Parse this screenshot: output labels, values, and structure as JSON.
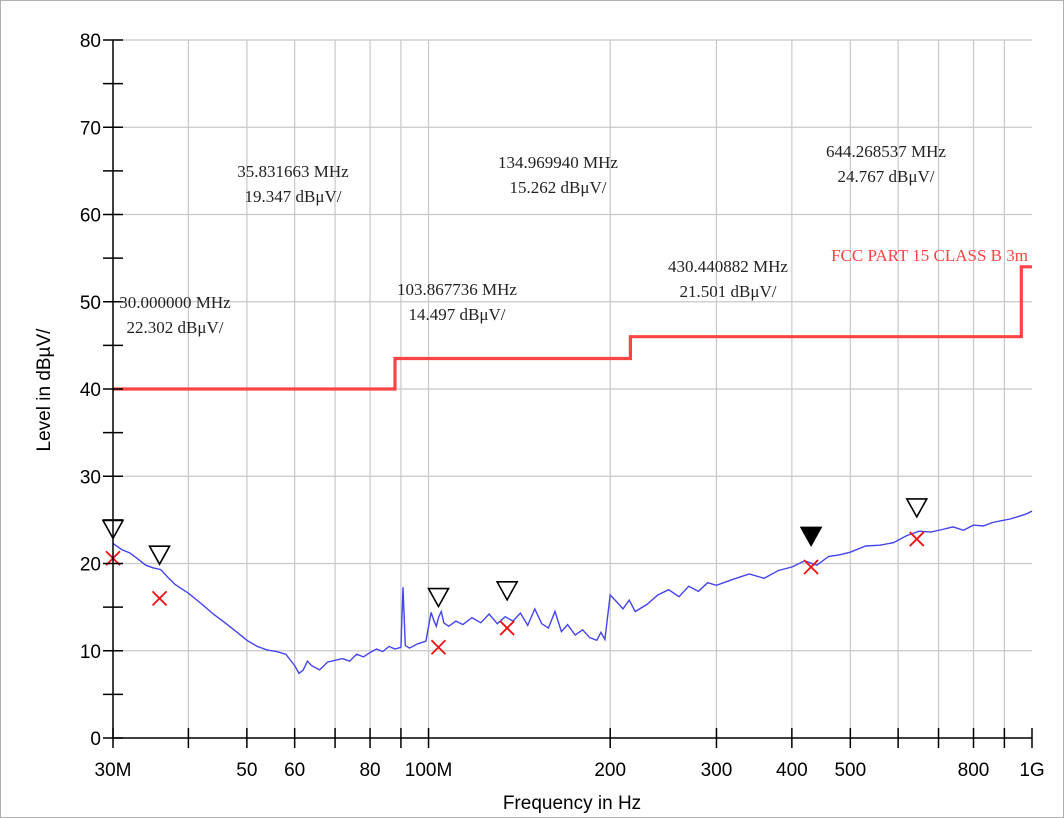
{
  "chart_data": {
    "type": "line",
    "xlabel": "Frequency in Hz",
    "ylabel": "Level in dBµV/",
    "x_scale": "log",
    "xlim": [
      30000000,
      1000000000
    ],
    "ylim": [
      0,
      80
    ],
    "grid": true,
    "x_tick_labels": [
      {
        "value": 30000000,
        "label": "30M"
      },
      {
        "value": 50000000,
        "label": "50"
      },
      {
        "value": 60000000,
        "label": "60"
      },
      {
        "value": 80000000,
        "label": "80"
      },
      {
        "value": 100000000,
        "label": "100M"
      },
      {
        "value": 200000000,
        "label": "200"
      },
      {
        "value": 300000000,
        "label": "300"
      },
      {
        "value": 400000000,
        "label": "400"
      },
      {
        "value": 500000000,
        "label": "500"
      },
      {
        "value": 800000000,
        "label": "800"
      },
      {
        "value": 1000000000,
        "label": "1G"
      }
    ],
    "y_tick_labels": [
      {
        "value": 0,
        "label": "0"
      },
      {
        "value": 10,
        "label": "10"
      },
      {
        "value": 20,
        "label": "20"
      },
      {
        "value": 30,
        "label": "30"
      },
      {
        "value": 40,
        "label": "40"
      },
      {
        "value": 50,
        "label": "50"
      },
      {
        "value": 60,
        "label": "60"
      },
      {
        "value": 70,
        "label": "70"
      },
      {
        "value": 80,
        "label": "80"
      }
    ],
    "limit_line": {
      "name": "FCC PART 15 CLASS B  3m",
      "color": "#ff4444",
      "x": [
        30000000,
        88000000,
        88000000,
        216000000,
        216000000,
        960000000,
        960000000,
        1000000000
      ],
      "y": [
        40,
        40,
        43.5,
        43.5,
        46,
        46,
        54,
        54
      ]
    },
    "series": [
      {
        "color": "#4444ee",
        "x": [
          30000000.0,
          31000000.0,
          32000000.0,
          33000000.0,
          34000000.0,
          35000000.0,
          36000000.0,
          37000000.0,
          38000000.0,
          40000000.0,
          42000000.0,
          44000000.0,
          46000000.0,
          48000000.0,
          50000000.0,
          52000000.0,
          54000000.0,
          56000000.0,
          58000000.0,
          60000000.0,
          61000000.0,
          62000000.0,
          63000000.0,
          64000000.0,
          66000000.0,
          68000000.0,
          70000000.0,
          72000000.0,
          74000000.0,
          76000000.0,
          78000000.0,
          80000000.0,
          82000000.0,
          84000000.0,
          86000000.0,
          88000000.0,
          90000000.0,
          90700000.0,
          91500000.0,
          93000000.0,
          96000000.0,
          99000000.0,
          101000000.0,
          102000000.0,
          103000000.0,
          104000000.0,
          105000000.0,
          106000000.0,
          108000000.0,
          111000000.0,
          114000000.0,
          118000000.0,
          122000000.0,
          126000000.0,
          130000000.0,
          134000000.0,
          138000000.0,
          142000000.0,
          146000000.0,
          150000000.0,
          154000000.0,
          158000000.0,
          162000000.0,
          166000000.0,
          170000000.0,
          175000000.0,
          180000000.0,
          185000000.0,
          190000000.0,
          193000000.0,
          196000000.0,
          200000000.0,
          205000000.0,
          210000000.0,
          215000000.0,
          220000000.0,
          230000000.0,
          240000000.0,
          250000000.0,
          260000000.0,
          270000000.0,
          280000000.0,
          290000000.0,
          300000000.0,
          320000000.0,
          340000000.0,
          360000000.0,
          380000000.0,
          400000000.0,
          420000000.0,
          440000000.0,
          460000000.0,
          480000000.0,
          500000000.0,
          530000000.0,
          560000000.0,
          590000000.0,
          620000000.0,
          650000000.0,
          680000000.0,
          710000000.0,
          740000000.0,
          770000000.0,
          800000000.0,
          830000000.0,
          860000000.0,
          890000000.0,
          920000000.0,
          950000000.0,
          980000000.0,
          1000000000.0
        ],
        "y": [
          22.3,
          21.6,
          21.2,
          20.5,
          19.8,
          19.5,
          19.3,
          18.4,
          17.6,
          16.6,
          15.4,
          14.2,
          13.2,
          12.2,
          11.2,
          10.5,
          10.1,
          9.9,
          9.6,
          8.3,
          7.4,
          7.8,
          8.8,
          8.3,
          7.8,
          8.7,
          8.9,
          9.1,
          8.8,
          9.6,
          9.3,
          9.8,
          10.2,
          9.9,
          10.5,
          10.2,
          10.4,
          17.3,
          10.6,
          10.3,
          10.8,
          11.1,
          14.4,
          13.5,
          12.8,
          13.9,
          14.5,
          13.2,
          12.8,
          13.4,
          13.0,
          13.8,
          13.2,
          14.2,
          13.1,
          13.9,
          13.4,
          14.3,
          12.9,
          14.8,
          13.1,
          12.6,
          14.5,
          12.2,
          13.0,
          11.8,
          12.4,
          11.5,
          11.2,
          12.1,
          11.3,
          16.4,
          15.6,
          14.8,
          15.8,
          14.5,
          15.3,
          16.4,
          17.0,
          16.2,
          17.4,
          16.8,
          17.8,
          17.5,
          18.2,
          18.8,
          18.3,
          19.2,
          19.6,
          20.3,
          19.8,
          20.8,
          21.0,
          21.3,
          22.0,
          22.1,
          22.4,
          23.2,
          23.7,
          23.6,
          23.9,
          24.2,
          23.8,
          24.4,
          24.3,
          24.7,
          24.9,
          25.1,
          25.4,
          25.7,
          26.0
        ]
      }
    ],
    "peak_markers": [
      {
        "x": 30000000,
        "y": 22.302,
        "filled": false
      },
      {
        "x": 35831663,
        "y": 19.347,
        "filled": false
      },
      {
        "x": 103867736,
        "y": 14.497,
        "filled": false
      },
      {
        "x": 134969940,
        "y": 15.262,
        "filled": false
      },
      {
        "x": 430440882,
        "y": 21.501,
        "filled": true
      },
      {
        "x": 644268537,
        "y": 24.767,
        "filled": false
      }
    ],
    "final_markers": [
      {
        "x": 30000000,
        "y": 20.6
      },
      {
        "x": 35831663,
        "y": 16.0
      },
      {
        "x": 103867736,
        "y": 10.4
      },
      {
        "x": 134969940,
        "y": 12.6
      },
      {
        "x": 430440882,
        "y": 19.6
      },
      {
        "x": 644268537,
        "y": 22.8
      }
    ],
    "annotations": [
      {
        "freq_label": "30.000000 MHz",
        "level_label": "22.302 dBμV/"
      },
      {
        "freq_label": "35.831663 MHz",
        "level_label": "19.347 dBμV/"
      },
      {
        "freq_label": "103.867736 MHz",
        "level_label": "14.497 dBμV/"
      },
      {
        "freq_label": "134.969940 MHz",
        "level_label": "15.262 dBμV/"
      },
      {
        "freq_label": "430.440882 MHz",
        "level_label": "21.501 dBμV/"
      },
      {
        "freq_label": "644.268537 MHz",
        "level_label": "24.767 dBμV/"
      }
    ]
  }
}
